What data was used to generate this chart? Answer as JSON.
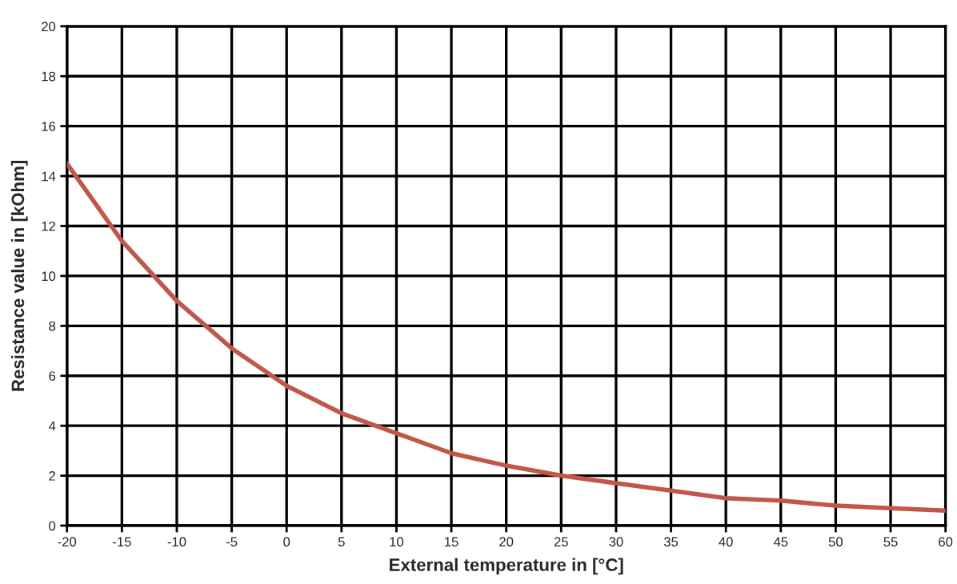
{
  "chart_data": {
    "type": "line",
    "xlabel": "External temperature in [°C]",
    "ylabel": "Resistance value in [kOhm]",
    "x": [
      -20,
      -15,
      -10,
      -5,
      0,
      5,
      10,
      15,
      20,
      25,
      30,
      35,
      40,
      45,
      50,
      55,
      60
    ],
    "series": [
      {
        "color": "#c0574a",
        "values": [
          14.5,
          11.4,
          9.0,
          7.1,
          5.6,
          4.5,
          3.7,
          2.9,
          2.4,
          2.0,
          1.7,
          1.4,
          1.1,
          1.0,
          0.8,
          0.7,
          0.6
        ]
      }
    ],
    "xlim": [
      -20,
      60
    ],
    "ylim": [
      0,
      20
    ],
    "xticks": [
      -20,
      -15,
      -10,
      -5,
      0,
      5,
      10,
      15,
      20,
      25,
      30,
      35,
      40,
      45,
      50,
      55,
      60
    ],
    "yticks": [
      0,
      2,
      4,
      6,
      8,
      10,
      12,
      14,
      16,
      18,
      20
    ],
    "grid": true,
    "marker": "none",
    "line_style": "solid"
  }
}
